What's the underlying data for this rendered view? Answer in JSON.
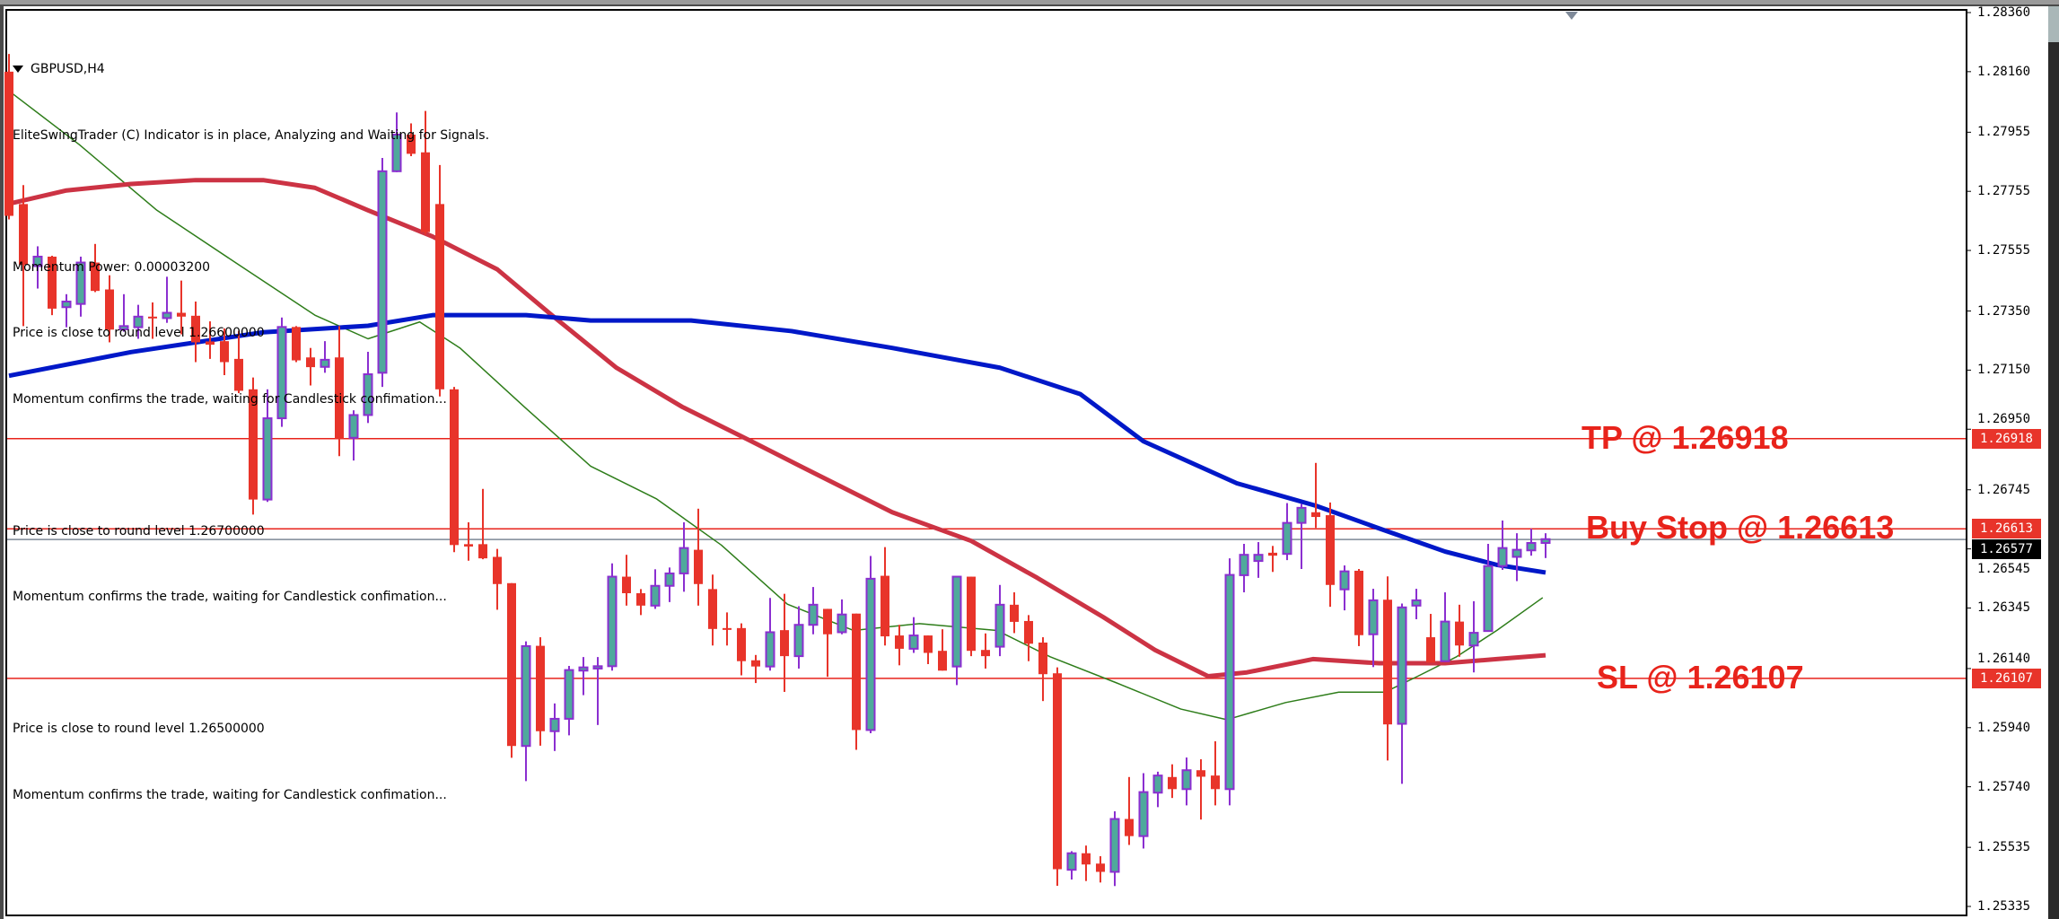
{
  "header": {
    "symbol_label": "GBPUSD,H4",
    "lines": [
      "EliteSwingTrader (C) Indicator is in place, Analyzing and Waiting for Signals.",
      "",
      "Momentum Power: 0.00003200",
      "Price is close to round level 1.26600000",
      "Momentum confirms the trade, waiting for Candlestick confimation...",
      "",
      "Price is close to round level 1.26700000",
      "Momentum confirms the trade, waiting for Candlestick confimation...",
      "",
      "Price is close to round level 1.26500000",
      "Momentum confirms the trade, waiting for Candlestick confimation..."
    ]
  },
  "colors": {
    "bear": "#e8342a",
    "bull_body": "#4fa99c",
    "bull_outline": "#8b2fd0",
    "level_line": "#e8231b",
    "current_price_line": "#7d8896",
    "ma_blue": "#0018c8",
    "ma_red": "#cc3344",
    "ma_green": "#2e7d1a"
  },
  "chart_data": {
    "type": "candlestick",
    "symbol": "GBPUSD",
    "timeframe": "H4",
    "ylim": [
      1.25335,
      1.2836
    ],
    "y_ticks": [
      "1.28360",
      "1.28160",
      "1.27955",
      "1.27755",
      "1.27555",
      "1.27350",
      "1.27150",
      "1.26950",
      "1.26745",
      "1.26545",
      "1.26345",
      "1.26140",
      "1.25940",
      "1.25740",
      "1.25535",
      "1.25335"
    ],
    "ohlc_columns": [
      "open",
      "high",
      "low",
      "close"
    ],
    "ohlc": [
      [
        1.2816,
        1.2822,
        1.2766,
        1.27672
      ],
      [
        1.27712,
        1.27776,
        1.27299,
        1.27506
      ],
      [
        1.27502,
        1.27569,
        1.27426,
        1.27534
      ],
      [
        1.27534,
        1.27537,
        1.27336,
        1.27358
      ],
      [
        1.27363,
        1.27407,
        1.27295,
        1.27382
      ],
      [
        1.27374,
        1.27534,
        1.27331,
        1.27514
      ],
      [
        1.27514,
        1.27577,
        1.27414,
        1.27418
      ],
      [
        1.27423,
        1.27471,
        1.27244,
        1.27287
      ],
      [
        1.27288,
        1.27407,
        1.2728,
        1.27299
      ],
      [
        1.27295,
        1.27371,
        1.27256,
        1.27331
      ],
      [
        1.27331,
        1.27379,
        1.27256,
        1.27326
      ],
      [
        1.27326,
        1.27466,
        1.2731,
        1.27344
      ],
      [
        1.27344,
        1.27453,
        1.27271,
        1.27331
      ],
      [
        1.27334,
        1.27382,
        1.27177,
        1.27244
      ],
      [
        1.27247,
        1.27315,
        1.27188,
        1.27236
      ],
      [
        1.27248,
        1.27291,
        1.27133,
        1.27177
      ],
      [
        1.27188,
        1.27283,
        1.27072,
        1.2708
      ],
      [
        1.27085,
        1.27125,
        1.26661,
        1.26712
      ],
      [
        1.26712,
        1.27085,
        1.26704,
        1.26987
      ],
      [
        1.26987,
        1.27328,
        1.26958,
        1.27296
      ],
      [
        1.27296,
        1.27299,
        1.27177,
        1.27183
      ],
      [
        1.27193,
        1.27225,
        1.27098,
        1.2716
      ],
      [
        1.27161,
        1.27248,
        1.27141,
        1.27185
      ],
      [
        1.27193,
        1.27299,
        1.26859,
        1.26918
      ],
      [
        1.26921,
        1.27014,
        1.26844,
        1.26998
      ],
      [
        1.26998,
        1.27212,
        1.26971,
        1.27136
      ],
      [
        1.27141,
        1.27868,
        1.27093,
        1.27823
      ],
      [
        1.27823,
        1.28022,
        1.2782,
        1.27947
      ],
      [
        1.27947,
        1.27985,
        1.27874,
        1.27882
      ],
      [
        1.27887,
        1.28027,
        1.27609,
        1.27617
      ],
      [
        1.27712,
        1.27844,
        1.27061,
        1.27085
      ],
      [
        1.27085,
        1.27093,
        1.26534,
        1.26558
      ],
      [
        1.26561,
        1.26635,
        1.26505,
        1.26553
      ],
      [
        1.26561,
        1.26748,
        1.2651,
        1.26513
      ],
      [
        1.26518,
        1.26545,
        1.26339,
        1.26426
      ],
      [
        1.26429,
        1.26429,
        1.25838,
        1.25878
      ],
      [
        1.25878,
        1.26232,
        1.25759,
        1.26216
      ],
      [
        1.26217,
        1.26246,
        1.25879,
        1.25928
      ],
      [
        1.25928,
        1.26022,
        1.25861,
        1.2597
      ],
      [
        1.2597,
        1.26149,
        1.25914,
        1.26135
      ],
      [
        1.26133,
        1.26179,
        1.2605,
        1.26144
      ],
      [
        1.2614,
        1.26179,
        1.25949,
        1.26148
      ],
      [
        1.26148,
        1.26496,
        1.26133,
        1.26451
      ],
      [
        1.26451,
        1.26525,
        1.26353,
        1.26395
      ],
      [
        1.26395,
        1.26409,
        1.26321,
        1.26353
      ],
      [
        1.26353,
        1.26476,
        1.26342,
        1.2642
      ],
      [
        1.2642,
        1.26482,
        1.26365,
        1.26462
      ],
      [
        1.26462,
        1.26635,
        1.264,
        1.26548
      ],
      [
        1.26542,
        1.26681,
        1.26353,
        1.26426
      ],
      [
        1.26409,
        1.26458,
        1.26218,
        1.26274
      ],
      [
        1.26277,
        1.2633,
        1.26218,
        1.26273
      ],
      [
        1.26277,
        1.26293,
        1.26117,
        1.26165
      ],
      [
        1.26168,
        1.26186,
        1.26091,
        1.26147
      ],
      [
        1.26147,
        1.26379,
        1.26133,
        1.26263
      ],
      [
        1.2627,
        1.26393,
        1.26061,
        1.26182
      ],
      [
        1.26182,
        1.26351,
        1.2614,
        1.26288
      ],
      [
        1.26288,
        1.26416,
        1.26256,
        1.26356
      ],
      [
        1.26342,
        1.26342,
        1.26112,
        1.26256
      ],
      [
        1.26263,
        1.26374,
        1.26256,
        1.26323
      ],
      [
        1.26326,
        1.26326,
        1.25865,
        1.25932
      ],
      [
        1.25932,
        1.26521,
        1.25921,
        1.26444
      ],
      [
        1.26454,
        1.26551,
        1.26218,
        1.26249
      ],
      [
        1.26252,
        1.26288,
        1.26151,
        1.26207
      ],
      [
        1.26207,
        1.26314,
        1.26193,
        1.26252
      ],
      [
        1.26252,
        1.26252,
        1.26155,
        1.26193
      ],
      [
        1.262,
        1.26273,
        1.26133,
        1.26133
      ],
      [
        1.26147,
        1.26451,
        1.26084,
        1.26451
      ],
      [
        1.26451,
        1.26451,
        1.26182,
        1.262
      ],
      [
        1.26203,
        1.26259,
        1.2614,
        1.26182
      ],
      [
        1.26214,
        1.26423,
        1.26182,
        1.26356
      ],
      [
        1.26356,
        1.26398,
        1.2626,
        1.26298
      ],
      [
        1.26301,
        1.26321,
        1.26165,
        1.26224
      ],
      [
        1.26228,
        1.26246,
        1.2603,
        1.26121
      ],
      [
        1.26124,
        1.26144,
        1.25405,
        1.25461
      ],
      [
        1.25459,
        1.25522,
        1.25426,
        1.25515
      ],
      [
        1.25515,
        1.25541,
        1.25421,
        1.25477
      ],
      [
        1.2548,
        1.25505,
        1.25416,
        1.25452
      ],
      [
        1.25452,
        1.25657,
        1.25404,
        1.25631
      ],
      [
        1.25631,
        1.25773,
        1.25543,
        1.25573
      ],
      [
        1.25573,
        1.25786,
        1.25531,
        1.25722
      ],
      [
        1.2572,
        1.25791,
        1.25671,
        1.25778
      ],
      [
        1.25773,
        1.25816,
        1.25702,
        1.25732
      ],
      [
        1.25732,
        1.25839,
        1.25677,
        1.25796
      ],
      [
        1.25796,
        1.25833,
        1.25629,
        1.25774
      ],
      [
        1.25778,
        1.25894,
        1.25677,
        1.25732
      ],
      [
        1.25732,
        1.26513,
        1.25677,
        1.26457
      ],
      [
        1.26456,
        1.26562,
        1.26398,
        1.26525
      ],
      [
        1.26504,
        1.26568,
        1.26447,
        1.26525
      ],
      [
        1.26532,
        1.26555,
        1.26467,
        1.26522
      ],
      [
        1.26528,
        1.267,
        1.26507,
        1.26633
      ],
      [
        1.26633,
        1.26697,
        1.26477,
        1.26684
      ],
      [
        1.26669,
        1.26836,
        1.26616,
        1.26653
      ],
      [
        1.26659,
        1.26702,
        1.26349,
        1.26423
      ],
      [
        1.26408,
        1.26489,
        1.26337,
        1.26469
      ],
      [
        1.26471,
        1.26477,
        1.26216,
        1.26253
      ],
      [
        1.26256,
        1.2641,
        1.26145,
        1.26371
      ],
      [
        1.26373,
        1.26452,
        1.25829,
        1.25951
      ],
      [
        1.25953,
        1.2636,
        1.2575,
        1.26347
      ],
      [
        1.26353,
        1.2641,
        1.26307,
        1.26371
      ],
      [
        1.26246,
        1.26325,
        1.2616,
        1.2616
      ],
      [
        1.26165,
        1.26398,
        1.26163,
        1.26299
      ],
      [
        1.26299,
        1.26356,
        1.2618,
        1.26218
      ],
      [
        1.26218,
        1.26368,
        1.26127,
        1.26261
      ],
      [
        1.26267,
        1.26562,
        1.26267,
        1.26487
      ],
      [
        1.26487,
        1.26641,
        1.26474,
        1.26548
      ],
      [
        1.26518,
        1.26598,
        1.26436,
        1.26542
      ],
      [
        1.2654,
        1.26613,
        1.26522,
        1.26565
      ],
      [
        1.26565,
        1.26598,
        1.26514,
        1.26578
      ]
    ],
    "moving_averages": [
      {
        "color_key": "ma_green",
        "width": "thin",
        "points": [
          [
            1.1,
            1.28091
          ],
          [
            5.9,
            1.27913
          ],
          [
            11.3,
            1.27691
          ],
          [
            16.8,
            1.27513
          ],
          [
            22.3,
            1.27336
          ],
          [
            26,
            1.27256
          ],
          [
            29.6,
            1.27313
          ],
          [
            32.4,
            1.27225
          ],
          [
            36.9,
            1.27025
          ],
          [
            41.5,
            1.26825
          ],
          [
            46.1,
            1.26714
          ],
          [
            50.6,
            1.26558
          ],
          [
            55.2,
            1.26358
          ],
          [
            59.8,
            1.26269
          ],
          [
            64.4,
            1.26292
          ],
          [
            69.8,
            1.26269
          ],
          [
            73.5,
            1.2618
          ],
          [
            78.1,
            1.26092
          ],
          [
            82.6,
            1.26003
          ],
          [
            85.8,
            1.25967
          ],
          [
            89.9,
            1.26025
          ],
          [
            93.6,
            1.2606
          ],
          [
            96.8,
            1.2606
          ],
          [
            99.1,
            1.26114
          ],
          [
            101.8,
            1.2618
          ],
          [
            104.6,
            1.26269
          ],
          [
            107.8,
            1.2638
          ]
        ]
      },
      {
        "color_key": "ma_red",
        "width": "thick",
        "points": [
          [
            1,
            1.27713
          ],
          [
            5,
            1.27758
          ],
          [
            9.5,
            1.2778
          ],
          [
            14,
            1.27793
          ],
          [
            18.7,
            1.27793
          ],
          [
            22.3,
            1.27767
          ],
          [
            26,
            1.27691
          ],
          [
            30.5,
            1.27602
          ],
          [
            35,
            1.27491
          ],
          [
            38.8,
            1.27336
          ],
          [
            43.3,
            1.27158
          ],
          [
            47.9,
            1.27025
          ],
          [
            52.5,
            1.26914
          ],
          [
            57,
            1.26803
          ],
          [
            62.5,
            1.26669
          ],
          [
            68,
            1.26572
          ],
          [
            72.6,
            1.26447
          ],
          [
            77.2,
            1.26314
          ],
          [
            80.8,
            1.26203
          ],
          [
            84.5,
            1.26114
          ],
          [
            87.2,
            1.26127
          ],
          [
            91.8,
            1.26172
          ],
          [
            96.4,
            1.26158
          ],
          [
            101,
            1.26158
          ],
          [
            104.6,
            1.26172
          ],
          [
            108,
            1.26185
          ]
        ]
      },
      {
        "color_key": "ma_blue",
        "width": "thick",
        "points": [
          [
            1,
            1.27131
          ],
          [
            9.5,
            1.27211
          ],
          [
            18.7,
            1.27278
          ],
          [
            26,
            1.273
          ],
          [
            30.5,
            1.27336
          ],
          [
            37,
            1.27336
          ],
          [
            41.5,
            1.27318
          ],
          [
            48.5,
            1.27318
          ],
          [
            55.5,
            1.27282
          ],
          [
            62.5,
            1.27225
          ],
          [
            70,
            1.27158
          ],
          [
            75.6,
            1.27069
          ],
          [
            80,
            1.26909
          ],
          [
            86.5,
            1.26767
          ],
          [
            92,
            1.26691
          ],
          [
            96.6,
            1.26611
          ],
          [
            101,
            1.26536
          ],
          [
            104.6,
            1.26491
          ],
          [
            108,
            1.26465
          ]
        ]
      }
    ],
    "levels": [
      {
        "label": "TP @ 1.26918",
        "price": 1.26918,
        "tag": "1.26918"
      },
      {
        "label": "Buy Stop @ 1.26613",
        "price": 1.26613,
        "tag": "1.26613"
      },
      {
        "label": "SL @ 1.26107",
        "price": 1.26107,
        "tag": "1.26107"
      }
    ],
    "current_price": {
      "price": 1.26577,
      "tag": "1.26577"
    }
  }
}
